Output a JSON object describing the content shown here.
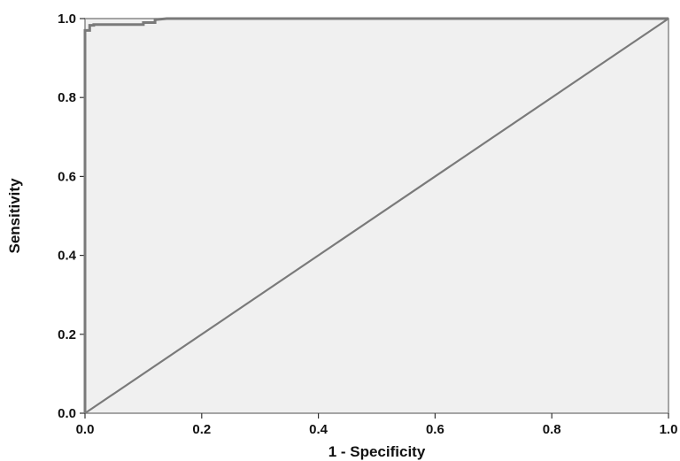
{
  "chart_data": {
    "type": "line",
    "xlabel": "1 - Specificity",
    "ylabel": "Sensitivity",
    "xlim": [
      0,
      1
    ],
    "ylim": [
      0,
      1
    ],
    "grid": false,
    "x_tick_labels": [
      "0.0",
      "0.2",
      "0.4",
      "0.6",
      "0.8",
      "1.0"
    ],
    "y_tick_labels": [
      "0.0",
      "0.2",
      "0.4",
      "0.6",
      "0.8",
      "1.0"
    ],
    "series": [
      {
        "x": [
          0.0,
          0.0,
          0.0,
          0.008,
          0.008,
          0.015,
          0.015,
          0.1,
          0.1,
          0.12,
          0.12,
          0.14,
          1.0
        ],
        "y": [
          0.0,
          0.965,
          0.97,
          0.97,
          0.983,
          0.983,
          0.985,
          0.985,
          0.99,
          0.99,
          0.997,
          1.0,
          1.0
        ]
      },
      {
        "x": [
          0.0,
          1.0
        ],
        "y": [
          0.0,
          1.0
        ]
      }
    ],
    "colors": {
      "plot_background": "#f0f0f0",
      "curve": "#7a7a7a",
      "axis": "#888888"
    }
  }
}
